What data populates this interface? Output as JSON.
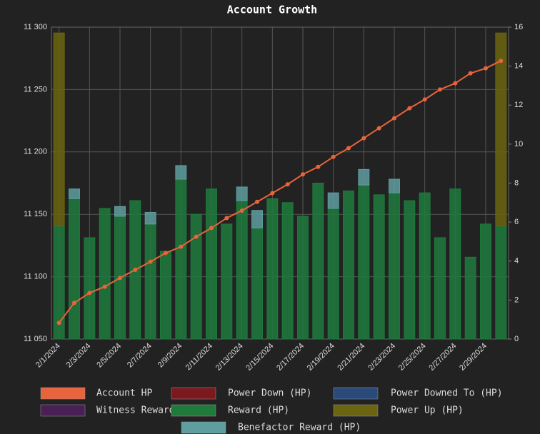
{
  "chart_data": {
    "type": "bar",
    "title": "Account Growth",
    "categories": [
      "2/1/2024",
      null,
      "2/3/2024",
      null,
      "2/5/2024",
      null,
      "2/7/2024",
      null,
      "2/9/2024",
      null,
      "2/11/2024",
      null,
      "2/13/2024",
      null,
      "2/15/2024",
      null,
      "2/17/2024",
      null,
      "2/19/2024",
      null,
      "2/21/2024",
      null,
      "2/23/2024",
      null,
      "2/25/2024",
      null,
      "2/27/2024",
      null,
      "2/29/2024",
      null
    ],
    "series": [
      {
        "name": "Account HP",
        "color": "#e8643c",
        "kind": "line",
        "axis": "y",
        "values": [
          11063,
          11079,
          11087,
          11092,
          11099,
          11105.5,
          11112,
          11119,
          11124,
          11132,
          11139,
          11147,
          11153,
          11160,
          11167,
          11174,
          11182,
          11188,
          11196,
          11203,
          11211,
          11219,
          11227,
          11235,
          11242,
          11250,
          11255,
          11263,
          11267,
          11273
        ]
      },
      {
        "name": "Power Down (HP)",
        "color": "#7a1a1f"
      },
      {
        "name": "Power Downed To (HP)",
        "color": "#2a4a7a"
      },
      {
        "name": "Witness Reward (HP)",
        "color": "#4a1f55"
      },
      {
        "name": "Reward (HP)",
        "color": "#1f7a3c",
        "kind": "bar",
        "axis": "y2",
        "values": [
          5.8,
          7.2,
          5.2,
          6.7,
          6.3,
          7.1,
          5.9,
          4.5,
          8.2,
          6.4,
          7.7,
          5.9,
          7.1,
          5.7,
          7.2,
          7.0,
          6.3,
          8.0,
          6.7,
          7.6,
          7.9,
          7.4,
          7.5,
          7.1,
          7.5,
          5.2,
          7.7,
          4.2,
          5.9,
          5.8
        ]
      },
      {
        "name": "Power Up (HP)",
        "color": "#6b6410",
        "kind": "bar",
        "axis": "y2",
        "values": [
          9.9,
          0,
          0,
          0,
          0,
          0,
          0,
          0,
          0,
          0,
          0,
          0,
          0,
          0,
          0,
          0,
          0,
          0,
          0,
          0,
          0,
          0,
          0,
          0,
          0,
          0,
          0,
          0,
          0,
          9.9
        ]
      },
      {
        "name": "Benefactor Reward (HP)",
        "color": "#5f9ea0",
        "kind": "bar",
        "axis": "y2",
        "values": [
          0,
          0.5,
          0,
          0,
          0.5,
          0,
          0.6,
          0,
          0.7,
          0,
          0,
          0,
          0.7,
          0.9,
          0,
          0,
          0,
          0,
          0.8,
          0,
          0.8,
          0,
          0.7,
          0,
          0,
          0,
          0,
          0,
          0,
          0
        ]
      }
    ],
    "ylim": [
      11050,
      11300
    ],
    "yticks": [
      {
        "value": 11050,
        "label": "11 050"
      },
      {
        "value": 11100,
        "label": "11 100"
      },
      {
        "value": 11150,
        "label": "11 150"
      },
      {
        "value": 11200,
        "label": "11 200"
      },
      {
        "value": 11250,
        "label": "11 250"
      },
      {
        "value": 11300,
        "label": "11 300"
      }
    ],
    "y2lim": [
      0,
      16
    ],
    "y2ticks": [
      0,
      2,
      4,
      6,
      8,
      10,
      12,
      14,
      16
    ],
    "grid": true
  }
}
